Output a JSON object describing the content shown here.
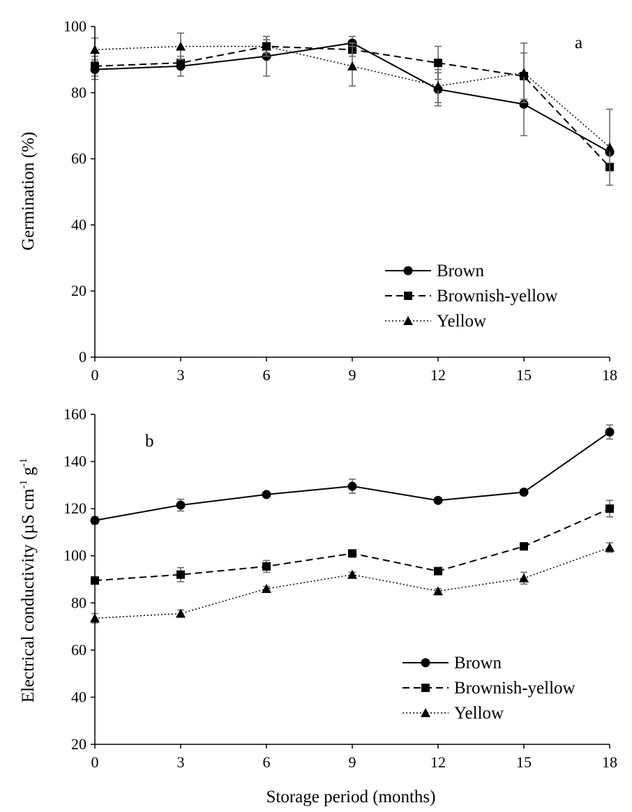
{
  "chart_data": [
    {
      "type": "line",
      "panel_label": "a",
      "xlabel": "",
      "ylabel": "Germination (%)",
      "x": [
        0,
        3,
        6,
        9,
        12,
        15,
        18
      ],
      "xlim": [
        0,
        18
      ],
      "ylim": [
        0,
        100
      ],
      "xticks": [
        0,
        3,
        6,
        9,
        12,
        15,
        18
      ],
      "yticks": [
        0,
        20,
        40,
        60,
        80,
        100
      ],
      "grid": false,
      "legend_placement": "bottom-right",
      "series": [
        {
          "name": "Brown",
          "marker": "circle",
          "line": "solid",
          "values": [
            87,
            88,
            91,
            95,
            81,
            76.5,
            62
          ],
          "errors": [
            3,
            3,
            6,
            2,
            5,
            9.5,
            0
          ]
        },
        {
          "name": "Brownish-yellow",
          "marker": "square",
          "line": "dashed",
          "values": [
            88,
            89,
            94,
            93,
            89,
            85,
            57.5
          ],
          "errors": [
            3,
            1,
            2,
            2,
            5,
            7,
            0
          ]
        },
        {
          "name": "Yellow",
          "marker": "triangle",
          "line": "dotted",
          "values": [
            93,
            94,
            94,
            88,
            82,
            86,
            63.5
          ],
          "errors": [
            3.5,
            4,
            3,
            6,
            5,
            9,
            11.5
          ]
        }
      ]
    },
    {
      "type": "line",
      "panel_label": "b",
      "xlabel": "Storage period (months)",
      "ylabel_main": "Electrical conductivity (µS cm",
      "ylabel_sup1": "-1",
      "ylabel_mid": " g",
      "ylabel_sup2": "-1",
      "x": [
        0,
        3,
        6,
        9,
        12,
        15,
        18
      ],
      "xlim": [
        0,
        18
      ],
      "ylim": [
        20,
        160
      ],
      "xticks": [
        0,
        3,
        6,
        9,
        12,
        15,
        18
      ],
      "yticks": [
        20,
        40,
        60,
        80,
        100,
        120,
        140,
        160
      ],
      "grid": false,
      "legend_placement": "bottom-right",
      "series": [
        {
          "name": "Brown",
          "marker": "circle",
          "line": "solid",
          "values": [
            115,
            121.5,
            126,
            129.5,
            123.5,
            127,
            152.5
          ],
          "errors": [
            1.5,
            2.5,
            1,
            3,
            1,
            1,
            3
          ]
        },
        {
          "name": "Brownish-yellow",
          "marker": "square",
          "line": "dashed",
          "values": [
            89.5,
            92,
            95.5,
            101,
            93.5,
            104,
            120
          ],
          "errors": [
            1.5,
            3,
            2.5,
            1,
            1,
            1,
            3.5
          ]
        },
        {
          "name": "Yellow",
          "marker": "triangle",
          "line": "dotted",
          "values": [
            73.5,
            75.5,
            86,
            92,
            85,
            90.5,
            103.5
          ],
          "errors": [
            2,
            1.5,
            1,
            1,
            1,
            2.5,
            2
          ]
        }
      ]
    }
  ]
}
